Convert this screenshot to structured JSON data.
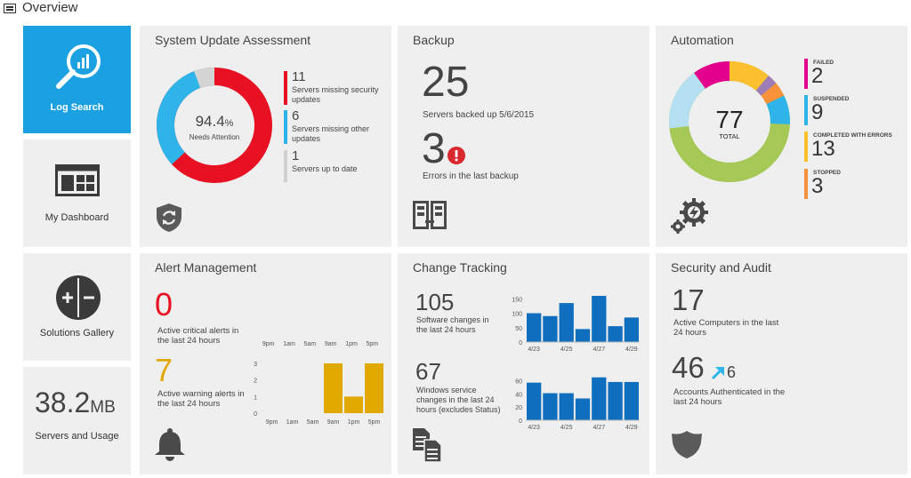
{
  "window": {
    "title": "Overview",
    "title_icon": "overview-icon"
  },
  "nav": {
    "log_search": {
      "label": "Log Search",
      "icon": "search-chart-icon"
    },
    "my_dashboard": {
      "label": "My Dashboard",
      "icon": "dashboard-icon"
    },
    "solutions_gallery": {
      "label": "Solutions Gallery",
      "icon": "plus-minus-icon"
    },
    "servers_usage": {
      "value": "38.2",
      "unit": "MB",
      "label": "Servers and Usage"
    }
  },
  "system_update": {
    "title": "System Update Assessment",
    "center_value": "94.4",
    "center_unit": "%",
    "center_label": "Needs Attention",
    "legend": [
      {
        "value": "11",
        "label": "Servers missing security updates",
        "color": "#e81123"
      },
      {
        "value": "6",
        "label": "Servers missing other updates",
        "color": "#2fb4e9"
      },
      {
        "value": "1",
        "label": "Servers up to date",
        "color": "#d0d0d0"
      }
    ],
    "icon": "update-shield-icon"
  },
  "backup": {
    "title": "Backup",
    "servers_value": "25",
    "servers_label": "Servers backed up 5/6/2015",
    "errors_value": "3",
    "errors_label": "Errors in the last backup",
    "error_icon": "error-icon",
    "icon": "backup-icon",
    "error_color": "#d9282e"
  },
  "automation": {
    "title": "Automation",
    "total_value": "77",
    "total_label": "TOTAL",
    "icon": "gear-lightning-icon",
    "stats": [
      {
        "label": "FAILED",
        "value": "2",
        "color": "#e3008c"
      },
      {
        "label": "SUSPENDED",
        "value": "9",
        "color": "#2fb4e9"
      },
      {
        "label": "COMPLETED WITH ERRORS",
        "value": "13",
        "color": "#fcc02f"
      },
      {
        "label": "STOPPED",
        "value": "3",
        "color": "#f7923a"
      }
    ]
  },
  "alert_management": {
    "title": "Alert Management",
    "critical_value": "0",
    "critical_label": "Active critical alerts in the last 24 hours",
    "warning_value": "7",
    "warning_label": "Active warning alerts in the last 24 hours",
    "critical_color": "#e81123",
    "warning_color": "#e1a900",
    "icon": "bell-icon",
    "critical_chart": {
      "x_labels": [
        "9pm",
        "1am",
        "5am",
        "9am",
        "1pm",
        "5pm"
      ],
      "values": []
    },
    "warning_chart": {
      "x_labels": [
        "9pm",
        "1am",
        "5am",
        "9am",
        "1pm",
        "5pm"
      ],
      "y_ticks": [
        "0",
        "1",
        "2",
        "3"
      ],
      "values": [
        0,
        0,
        0,
        3,
        1,
        3
      ],
      "ylim": [
        0,
        3
      ],
      "color": "#e1a900"
    }
  },
  "change_tracking": {
    "title": "Change Tracking",
    "software_value": "105",
    "software_label": "Software changes in the last 24 hours",
    "windows_value": "67",
    "windows_label": "Windows service changes in the last 24 hours (excludes Status)",
    "icon": "change-files-icon"
  },
  "security_audit": {
    "title": "Security and Audit",
    "computers_value": "17",
    "computers_label": "Active Computers in the last 24 hours",
    "accounts_value": "46",
    "accounts_delta": "6",
    "accounts_label": "Accounts Authenticated in the last 24 hours",
    "arrow_color": "#2fb4e9",
    "arrow_icon": "arrow-up-right-icon",
    "icon": "shield-icon"
  },
  "chart_data": [
    {
      "type": "bar",
      "categories": [
        "4/23",
        "4/24",
        "4/25",
        "4/26",
        "4/27",
        "4/28",
        "4/29"
      ],
      "x_labels": [
        "4/23",
        "4/25",
        "4/27",
        "4/29"
      ],
      "values": [
        100,
        90,
        135,
        45,
        160,
        55,
        85
      ],
      "y_ticks": [
        "0",
        "50",
        "100",
        "150"
      ],
      "ylim": [
        0,
        160
      ],
      "color": "#0f6ebd"
    },
    {
      "type": "bar",
      "categories": [
        "4/23",
        "4/24",
        "4/25",
        "4/26",
        "4/27",
        "4/28",
        "4/29"
      ],
      "x_labels": [
        "4/23",
        "4/25",
        "4/27",
        "4/29"
      ],
      "values": [
        57,
        41,
        41,
        33,
        65,
        58,
        58
      ],
      "y_ticks": [
        "0",
        "20",
        "40",
        "60"
      ],
      "ylim": [
        0,
        70
      ],
      "color": "#0f6ebd"
    },
    {
      "type": "bar",
      "categories": [
        "9pm",
        "1am",
        "5am",
        "9am",
        "1pm",
        "5pm"
      ],
      "values": [
        0,
        0,
        0,
        3,
        1,
        3
      ],
      "y_ticks": [
        "0",
        "1",
        "2",
        "3"
      ],
      "ylim": [
        0,
        3
      ],
      "color": "#e1a900"
    }
  ]
}
